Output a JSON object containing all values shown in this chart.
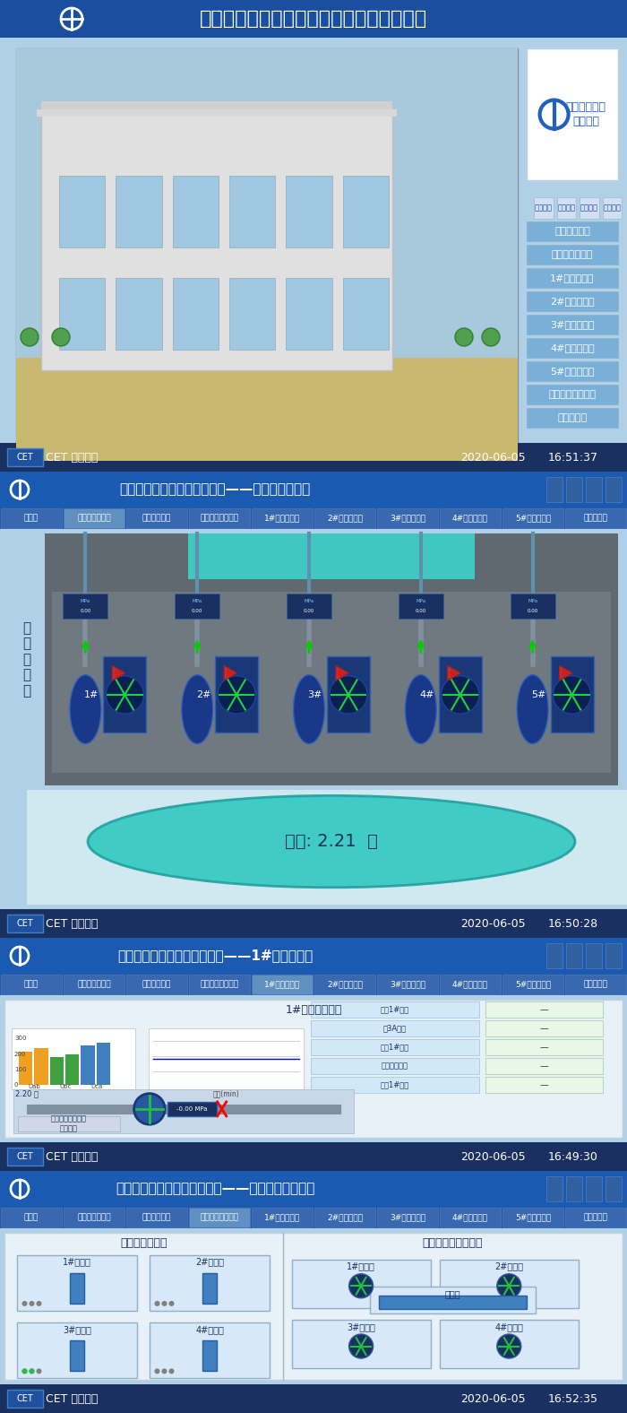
{
  "title_main": "渭北工业园区雨水泵站综合自动化监控系统",
  "bg_color": "#c8d8e8",
  "header_color": "#2060c0",
  "section1": {
    "title": "渭北工业园区\n雨水泵站",
    "nav_items": [
      "电气主接线图",
      "机组平面监控图",
      "1#机组监控图",
      "2#机组监控图",
      "3#机组监控图",
      "4#机组监控图",
      "5#机组监控图",
      "提升格栅机监控图",
      "系统结构图"
    ],
    "footer_left": "CET 中电技术",
    "footer_right1": "2020-06-05",
    "footer_right2": "16:51:37"
  },
  "section2": {
    "header_title": "渭北雨水泵站综合自动化系统——泵站平面监控图",
    "tabs": [
      "主画面",
      "泵站系统平面图",
      "电气主接线图",
      "提升格栅机监控图",
      "1#机组监控图",
      "2#机组监控图",
      "3#机组监控图",
      "4#机组监控图",
      "5#机组监控图",
      "系统结构图"
    ],
    "pump_labels": [
      "1#",
      "2#",
      "3#",
      "4#",
      "5#"
    ],
    "water_level": "水位: 2.21  米",
    "side_label": "泵\n站\n平\n面\n图",
    "footer_left": "CET 中电技术",
    "footer_right1": "2020-06-05",
    "footer_right2": "16:50:28"
  },
  "section3": {
    "header_title": "渭北雨水泵站综合自动化系统——1#机组监控图",
    "chart_title": "1#机组监控画面",
    "footer_left": "CET 中电技术",
    "footer_right1": "2020-06-05",
    "footer_right2": "16:49:30"
  },
  "section4": {
    "header_title": "渭北雨水泵站综合自动化系统——提升格栅机监控图",
    "left_title": "提升机监控画面",
    "right_title": "格栅输送机监控画面",
    "lift_labels": [
      "1#提升机",
      "2#提升机",
      "3#提升机",
      "4#提升机"
    ],
    "grid_labels": [
      "1#格栅机",
      "2#格栅机",
      "输送机",
      "3#格栅机",
      "4#格栅机"
    ],
    "footer_left": "CET 中电技术",
    "footer_right1": "2020-06-05",
    "footer_right2": "16:52:35"
  },
  "colors": {
    "header_bg": "#1a4fa0",
    "header_text": "#ffffff",
    "nav_btn": "#7ab0d8",
    "nav_btn_selected": "#4080c0",
    "section_header": "#1a5ab0",
    "tab_bg": "#3070b0",
    "tab_selected": "#5090d0",
    "footer_bg": "#1a3060",
    "pump_area_bg": "#606870",
    "water_area_bg": "#60c8c0",
    "water_color": "#40d8d0",
    "pipe_color": "#a0b8c8",
    "pump_color": "#2060a0",
    "light_blue": "#b0d0e8",
    "panel_bg": "#d8e8f0"
  }
}
